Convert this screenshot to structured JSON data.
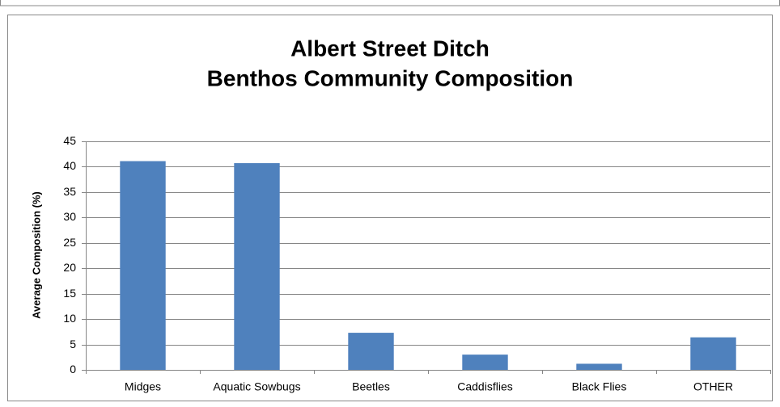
{
  "chart_data": {
    "type": "bar",
    "title": [
      "Albert Street Ditch",
      "Benthos Community Composition"
    ],
    "y_label": "Average Composition (%)",
    "categories": [
      "Midges",
      "Aquatic Sowbugs",
      "Beetles",
      "Caddisflies",
      "Black Flies",
      "OTHER"
    ],
    "values": [
      41.1,
      40.7,
      7.3,
      3.0,
      1.2,
      6.4
    ],
    "color": "#4f81bd",
    "ylim": [
      0,
      45
    ],
    "yticks": [
      0,
      5,
      10,
      15,
      20,
      25,
      30,
      35,
      40,
      45
    ],
    "grid": true
  }
}
